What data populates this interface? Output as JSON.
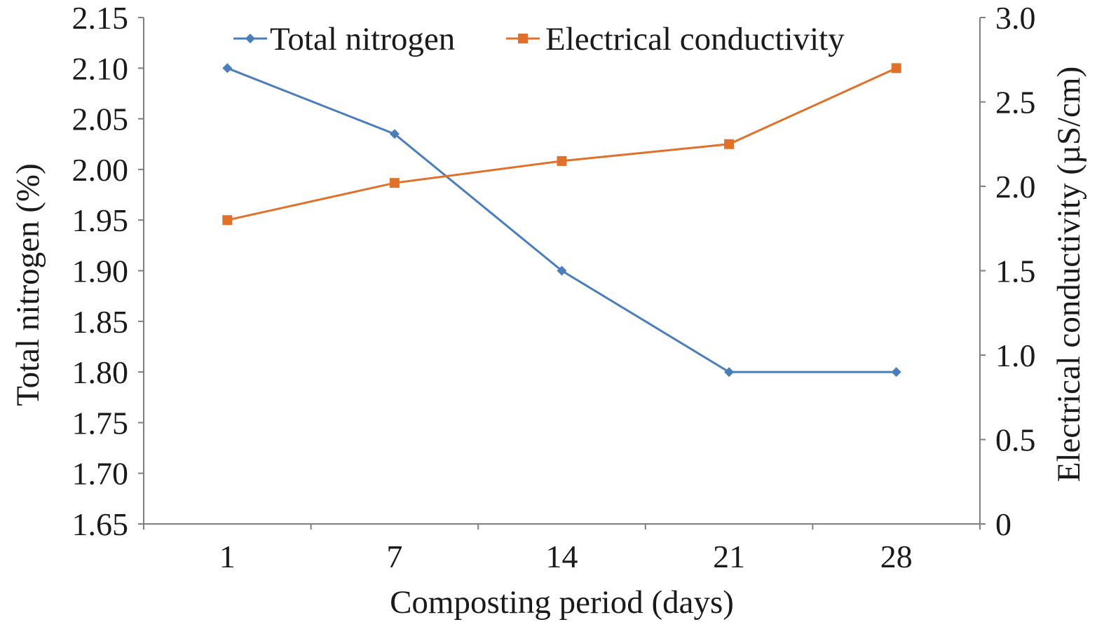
{
  "chart_data": {
    "type": "line",
    "title": "",
    "xlabel": "Composting period (days)",
    "ylabel": "Total nitrogen (%)",
    "y2label": "Electrical conductivity (µS/cm)",
    "categories": [
      "1",
      "7",
      "14",
      "21",
      "28"
    ],
    "ylim": [
      1.65,
      2.15
    ],
    "y2lim": [
      0,
      3.0
    ],
    "yticks": [
      "1.65",
      "1.70",
      "1.75",
      "1.80",
      "1.85",
      "1.90",
      "1.95",
      "2.00",
      "2.05",
      "2.10",
      "2.15"
    ],
    "y2ticks": [
      "0",
      "0.5",
      "1.0",
      "1.5",
      "2.0",
      "2.5",
      "3.0"
    ],
    "grid": false,
    "legend_position": "top",
    "series": [
      {
        "name": "Total nitrogen",
        "axis": "left",
        "marker": "diamond",
        "color": "#4a7ebb",
        "values": [
          2.1,
          2.035,
          1.9,
          1.8,
          1.8
        ]
      },
      {
        "name": "Electrical conductivity",
        "axis": "right",
        "marker": "square",
        "color": "#e0702a",
        "values": [
          1.8,
          2.02,
          2.15,
          2.25,
          2.7
        ]
      }
    ]
  }
}
